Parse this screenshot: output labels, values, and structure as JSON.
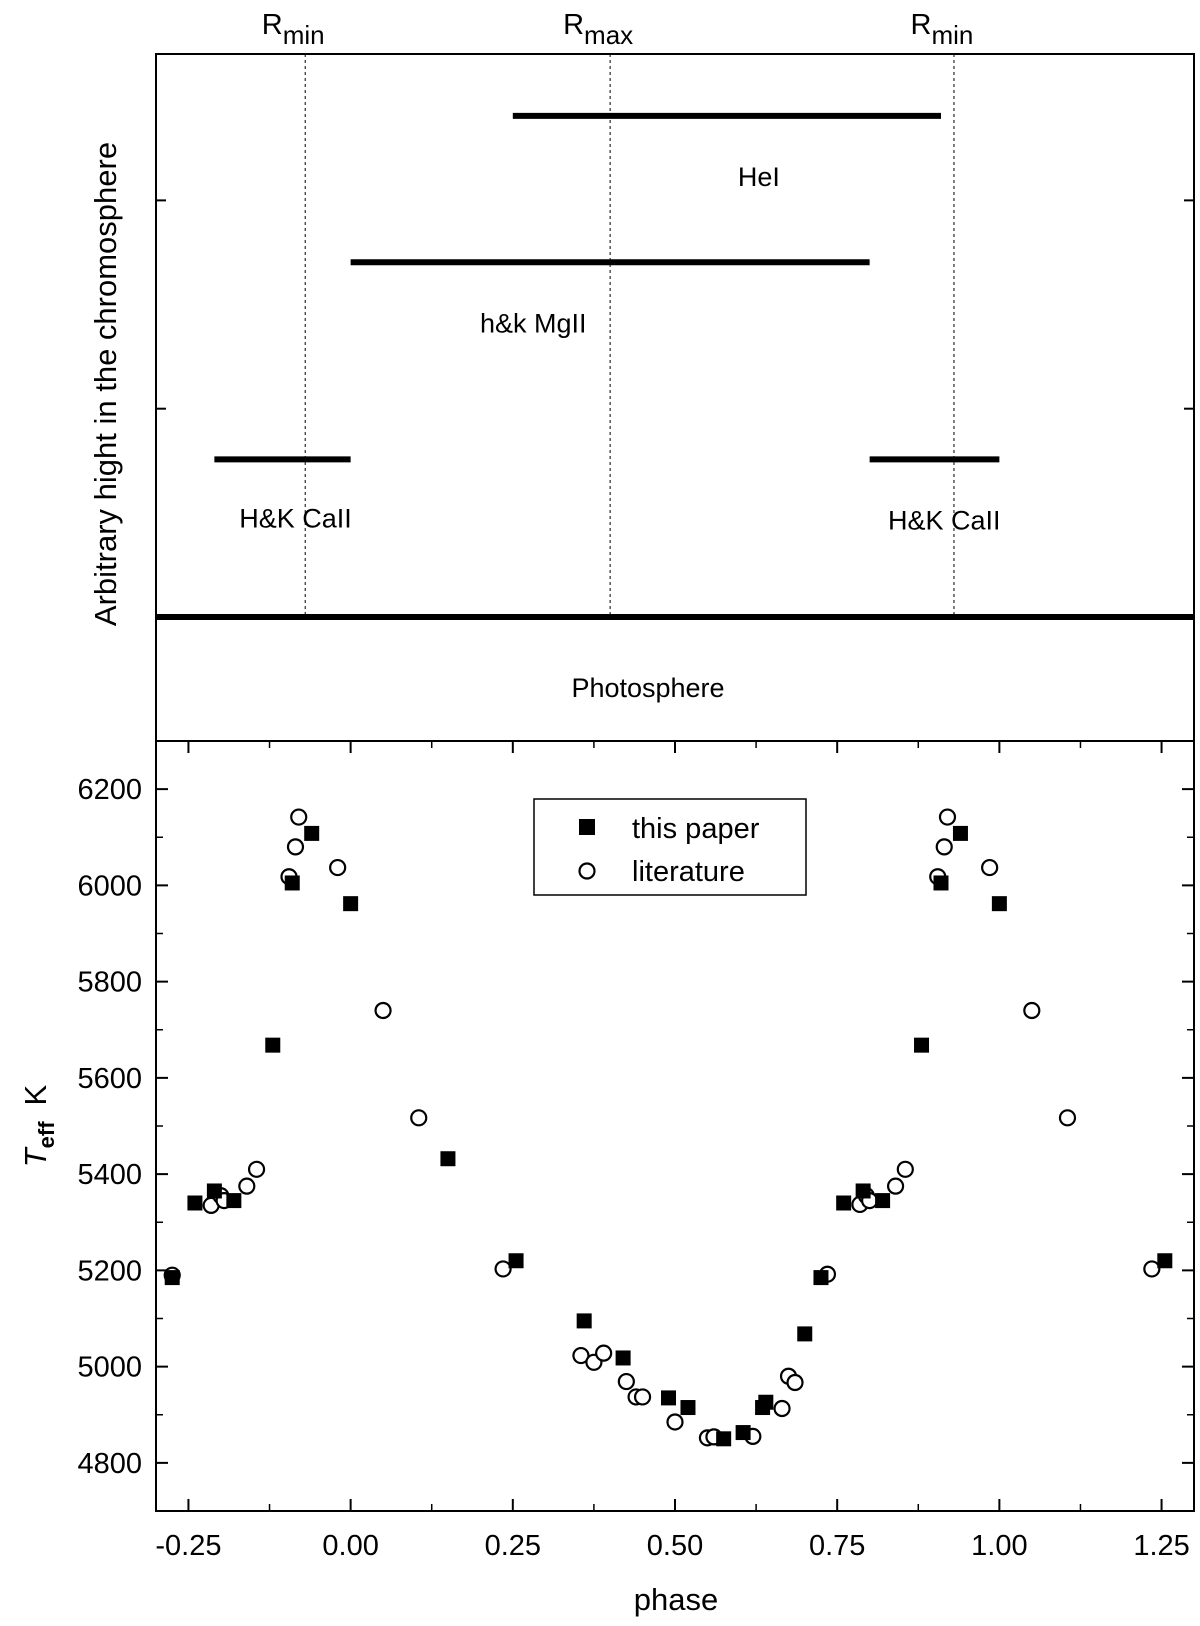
{
  "top_panel": {
    "y_axis_label": "Arbitrary hight in the chromosphere",
    "markers": [
      {
        "main": "R",
        "sub": "min",
        "phase": -0.07
      },
      {
        "main": "R",
        "sub": "max",
        "phase": 0.4
      },
      {
        "main": "R",
        "sub": "min",
        "phase": 0.93
      }
    ],
    "bands": [
      {
        "label": "HeI",
        "start": 0.25,
        "end": 0.91,
        "level": 0.89
      },
      {
        "label": "h&k MgII",
        "start": 0.0,
        "end": 0.8,
        "level": 0.63
      },
      {
        "label": "H&K CaII",
        "start": -0.21,
        "end": 0.0,
        "level": 0.28
      },
      {
        "label": "H&K CaII",
        "start": 0.8,
        "end": 1.0,
        "level": 0.28
      }
    ],
    "photosphere_label": "Photosphere"
  },
  "chart_data": {
    "type": "scatter",
    "xlabel": "phase",
    "ylabel_main": "T",
    "ylabel_sub": "eff",
    "ylabel_unit": "K",
    "xlim": [
      -0.3,
      1.3
    ],
    "ylim": [
      4700,
      6300
    ],
    "xticks": [
      -0.25,
      0.0,
      0.25,
      0.5,
      0.75,
      1.0,
      1.25
    ],
    "xtick_labels": [
      "-0.25",
      "0.00",
      "0.25",
      "0.50",
      "0.75",
      "1.00",
      "1.25"
    ],
    "yticks": [
      4800,
      5000,
      5200,
      5400,
      5600,
      5800,
      6000,
      6200
    ],
    "ytick_labels": [
      "4800",
      "5000",
      "5200",
      "5400",
      "5600",
      "5800",
      "6000",
      "6200"
    ],
    "legend_position": "top-center",
    "series": [
      {
        "name": "this paper",
        "marker": "filled-square",
        "points": [
          [
            -0.275,
            5185
          ],
          [
            -0.24,
            5340
          ],
          [
            -0.21,
            5365
          ],
          [
            -0.18,
            5345
          ],
          [
            -0.12,
            5668
          ],
          [
            -0.09,
            6005
          ],
          [
            -0.06,
            6108
          ],
          [
            0.0,
            5962
          ],
          [
            0.15,
            5432
          ],
          [
            0.255,
            5220
          ],
          [
            0.36,
            5095
          ],
          [
            0.42,
            5018
          ],
          [
            0.49,
            4935
          ],
          [
            0.52,
            4915
          ],
          [
            0.575,
            4850
          ],
          [
            0.605,
            4863
          ],
          [
            0.635,
            4915
          ],
          [
            0.64,
            4926
          ],
          [
            0.7,
            5068
          ],
          [
            0.725,
            5185
          ],
          [
            0.76,
            5340
          ],
          [
            0.79,
            5365
          ],
          [
            0.82,
            5345
          ],
          [
            0.88,
            5668
          ],
          [
            0.91,
            6005
          ],
          [
            0.94,
            6108
          ],
          [
            1.0,
            5962
          ],
          [
            1.255,
            5220
          ]
        ]
      },
      {
        "name": "literature",
        "marker": "open-circle",
        "points": [
          [
            -0.275,
            5190
          ],
          [
            -0.215,
            5335
          ],
          [
            -0.2,
            5355
          ],
          [
            -0.195,
            5345
          ],
          [
            -0.16,
            5375
          ],
          [
            -0.145,
            5410
          ],
          [
            -0.095,
            6018
          ],
          [
            -0.085,
            6080
          ],
          [
            -0.08,
            6142
          ],
          [
            -0.02,
            6037
          ],
          [
            0.05,
            5740
          ],
          [
            0.105,
            5517
          ],
          [
            0.235,
            5203
          ],
          [
            0.355,
            5023
          ],
          [
            0.375,
            5009
          ],
          [
            0.39,
            5028
          ],
          [
            0.425,
            4969
          ],
          [
            0.44,
            4937
          ],
          [
            0.45,
            4937
          ],
          [
            0.5,
            4885
          ],
          [
            0.55,
            4852
          ],
          [
            0.56,
            4854
          ],
          [
            0.62,
            4855
          ],
          [
            0.665,
            4913
          ],
          [
            0.675,
            4980
          ],
          [
            0.685,
            4967
          ],
          [
            0.735,
            5192
          ],
          [
            0.785,
            5337
          ],
          [
            0.795,
            5355
          ],
          [
            0.8,
            5345
          ],
          [
            0.84,
            5375
          ],
          [
            0.855,
            5410
          ],
          [
            0.905,
            6018
          ],
          [
            0.915,
            6080
          ],
          [
            0.92,
            6142
          ],
          [
            0.985,
            6037
          ],
          [
            1.05,
            5740
          ],
          [
            1.105,
            5517
          ],
          [
            1.235,
            5203
          ]
        ]
      }
    ]
  }
}
